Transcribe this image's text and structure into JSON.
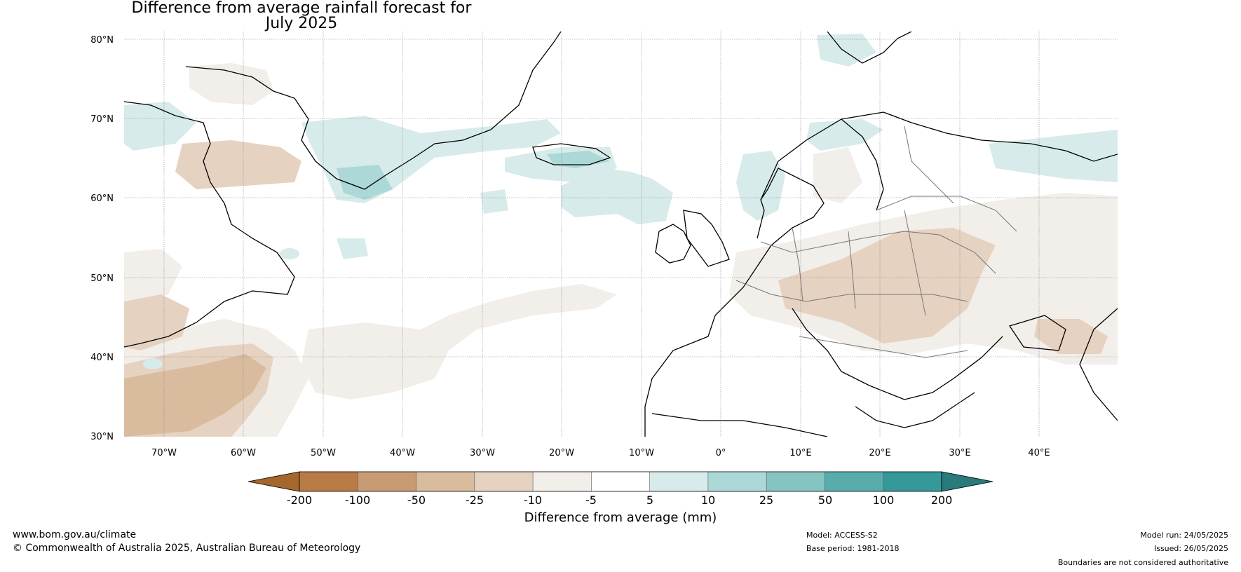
{
  "title": {
    "line1": "Difference from average rainfall forecast for",
    "line2": "July 2025"
  },
  "map": {
    "lat_labels": [
      "80°N",
      "70°N",
      "60°N",
      "50°N",
      "40°N",
      "30°N"
    ],
    "lon_labels": [
      "70°W",
      "60°W",
      "50°W",
      "40°W",
      "30°W",
      "20°W",
      "10°W",
      "0°",
      "10°E",
      "20°E",
      "30°E",
      "40°E"
    ],
    "lat_range": [
      30,
      81
    ],
    "lon_range": [
      -75,
      50
    ]
  },
  "colorbar": {
    "ticks": [
      "-200",
      "-100",
      "-50",
      "-25",
      "-10",
      "-5",
      "5",
      "10",
      "25",
      "50",
      "100",
      "200"
    ],
    "colors": [
      "#a5672b",
      "#b87b45",
      "#c99b72",
      "#d9bb9e",
      "#e6d2c0",
      "#f2eee9",
      "#ffffff",
      "#d7ebea",
      "#acd8d8",
      "#86c4c2",
      "#58acac",
      "#35999a",
      "#287a7b"
    ],
    "label": "Difference from average (mm)"
  },
  "footer": {
    "url": "www.bom.gov.au/climate",
    "copyright": "© Commonwealth of Australia 2025, Australian Bureau of Meteorology",
    "model": "Model: ACCESS-S2",
    "base_period": "Base period: 1981-2018",
    "model_run": "Model run: 24/05/2025",
    "issued": "Issued: 26/05/2025",
    "disclaimer": "Boundaries are not considered authoritative"
  }
}
